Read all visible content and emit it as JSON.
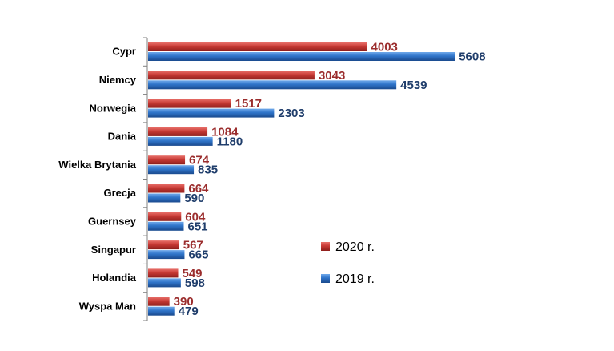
{
  "chart_data": {
    "type": "bar",
    "orientation": "horizontal",
    "categories": [
      "Cypr",
      "Niemcy",
      "Norwegia",
      "Dania",
      "Wielka Brytania",
      "Grecja",
      "Guernsey",
      "Singapur",
      "Holandia",
      "Wyspa Man"
    ],
    "series": [
      {
        "name": "2020 r.",
        "values": [
          4003,
          3043,
          1517,
          1084,
          674,
          664,
          604,
          567,
          549,
          390
        ],
        "color": "#c0392b",
        "label_color": "#9b2d2d"
      },
      {
        "name": "2019 r.",
        "values": [
          5608,
          4539,
          2303,
          1180,
          835,
          590,
          651,
          665,
          598,
          479
        ],
        "color": "#2e75c8",
        "label_color": "#1f3d6b"
      }
    ],
    "xlim": [
      0,
      6000
    ],
    "grid": false,
    "legend_position": "right"
  }
}
